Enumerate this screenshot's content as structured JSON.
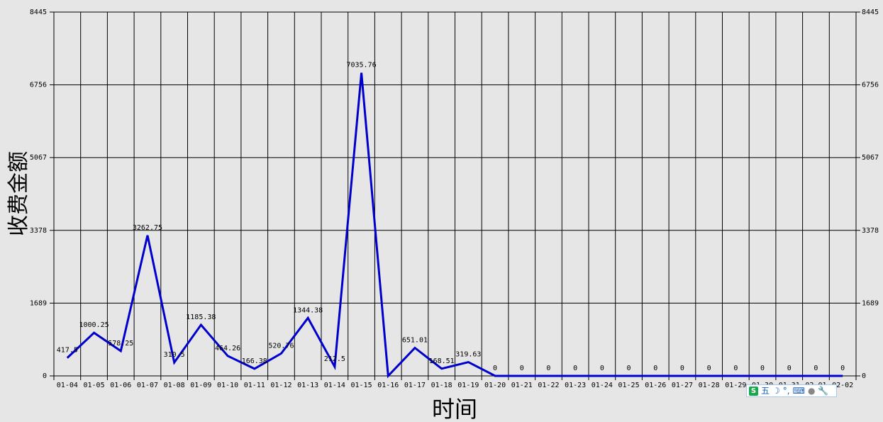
{
  "chart_data": {
    "type": "line",
    "xlabel": "时间",
    "ylabel": "收费金额",
    "ylim": [
      0,
      8445
    ],
    "y_ticks": [
      "0",
      "1689",
      "3378",
      "5067",
      "6756",
      "8445"
    ],
    "grid": true,
    "line_color": "#0000cc",
    "categories": [
      "01-04",
      "01-05",
      "01-06",
      "01-07",
      "01-08",
      "01-09",
      "01-10",
      "01-11",
      "01-12",
      "01-13",
      "01-14",
      "01-15",
      "01-16",
      "01-17",
      "01-18",
      "01-19",
      "01-20",
      "01-21",
      "01-22",
      "01-23",
      "01-24",
      "01-25",
      "01-26",
      "01-27",
      "01-28",
      "01-29",
      "01-30",
      "01-31",
      "02-01",
      "02-02"
    ],
    "values": [
      417.5,
      1000.25,
      578.25,
      3262.75,
      310.5,
      1185.38,
      464.26,
      166.38,
      520.76,
      1344.38,
      212.5,
      7035.76,
      0,
      651.01,
      168.51,
      319.63,
      0,
      0,
      0,
      0,
      0,
      0,
      0,
      0,
      0,
      0,
      0,
      0,
      0,
      0
    ],
    "value_labels": [
      "417.5",
      "1000.25",
      "578.25",
      "3262.75",
      "310.5",
      "1185.38",
      "464.26",
      "166.38",
      "520.76",
      "1344.38",
      "212.5",
      "7035.76",
      "",
      "651.01",
      "168.51",
      "319.63",
      "0",
      "0",
      "0",
      "0",
      "0",
      "0",
      "0",
      "0",
      "0",
      "0",
      "0",
      "0",
      "0",
      "0"
    ]
  },
  "ime_toolbar": {
    "logo": "S",
    "mode": "五",
    "icons": [
      "moon-icon",
      "punctuation-icon",
      "keyboard-icon",
      "user-icon",
      "wrench-icon"
    ]
  }
}
